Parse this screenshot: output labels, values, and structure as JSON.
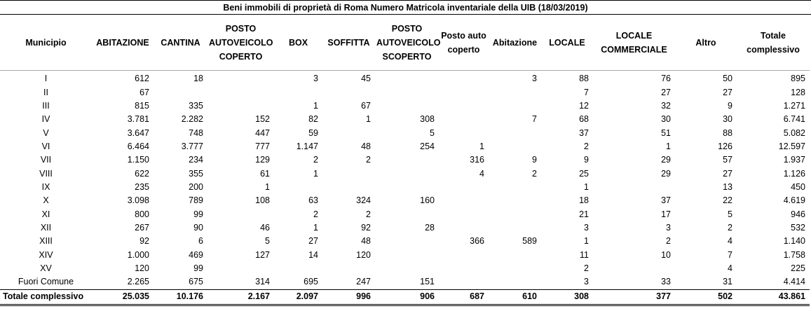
{
  "title": "Beni immobili di proprietà di Roma Numero Matricola inventariale della UIB (18/03/2019)",
  "headers": [
    "Municipio",
    "ABITAZIONE",
    "CANTINA",
    "POSTO AUTOVEICOLO COPERTO",
    "BOX",
    "SOFFITTA",
    "POSTO AUTOVEICOLO SCOPERTO",
    "Posto auto coperto",
    "Abitazione",
    "LOCALE",
    "LOCALE COMMERCIALE",
    "Altro",
    "Totale complessivo"
  ],
  "rows": [
    [
      "I",
      "612",
      "18",
      "",
      "3",
      "45",
      "",
      "",
      "3",
      "88",
      "76",
      "50",
      "895"
    ],
    [
      "II",
      "67",
      "",
      "",
      "",
      "",
      "",
      "",
      "",
      "7",
      "27",
      "27",
      "128"
    ],
    [
      "III",
      "815",
      "335",
      "",
      "1",
      "67",
      "",
      "",
      "",
      "12",
      "32",
      "9",
      "1.271"
    ],
    [
      "IV",
      "3.781",
      "2.282",
      "152",
      "82",
      "1",
      "308",
      "",
      "7",
      "68",
      "30",
      "30",
      "6.741"
    ],
    [
      "V",
      "3.647",
      "748",
      "447",
      "59",
      "",
      "5",
      "",
      "",
      "37",
      "51",
      "88",
      "5.082"
    ],
    [
      "VI",
      "6.464",
      "3.777",
      "777",
      "1.147",
      "48",
      "254",
      "1",
      "",
      "2",
      "1",
      "126",
      "12.597"
    ],
    [
      "VII",
      "1.150",
      "234",
      "129",
      "2",
      "2",
      "",
      "316",
      "9",
      "9",
      "29",
      "57",
      "1.937"
    ],
    [
      "VIII",
      "622",
      "355",
      "61",
      "1",
      "",
      "",
      "4",
      "2",
      "25",
      "29",
      "27",
      "1.126"
    ],
    [
      "IX",
      "235",
      "200",
      "1",
      "",
      "",
      "",
      "",
      "",
      "1",
      "",
      "13",
      "450"
    ],
    [
      "X",
      "3.098",
      "789",
      "108",
      "63",
      "324",
      "160",
      "",
      "",
      "18",
      "37",
      "22",
      "4.619"
    ],
    [
      "XI",
      "800",
      "99",
      "",
      "2",
      "2",
      "",
      "",
      "",
      "21",
      "17",
      "5",
      "946"
    ],
    [
      "XII",
      "267",
      "90",
      "46",
      "1",
      "92",
      "28",
      "",
      "",
      "3",
      "3",
      "2",
      "532"
    ],
    [
      "XIII",
      "92",
      "6",
      "5",
      "27",
      "48",
      "",
      "366",
      "589",
      "1",
      "2",
      "4",
      "1.140"
    ],
    [
      "XIV",
      "1.000",
      "469",
      "127",
      "14",
      "120",
      "",
      "",
      "",
      "11",
      "10",
      "7",
      "1.758"
    ],
    [
      "XV",
      "120",
      "99",
      "",
      "",
      "",
      "",
      "",
      "",
      "2",
      "",
      "4",
      "225"
    ],
    [
      "Fuori Comune",
      "2.265",
      "675",
      "314",
      "695",
      "247",
      "151",
      "",
      "",
      "3",
      "33",
      "31",
      "4.414"
    ]
  ],
  "total_row": [
    "Totale complessivo",
    "25.035",
    "10.176",
    "2.167",
    "2.097",
    "996",
    "906",
    "687",
    "610",
    "308",
    "377",
    "502",
    "43.861"
  ]
}
